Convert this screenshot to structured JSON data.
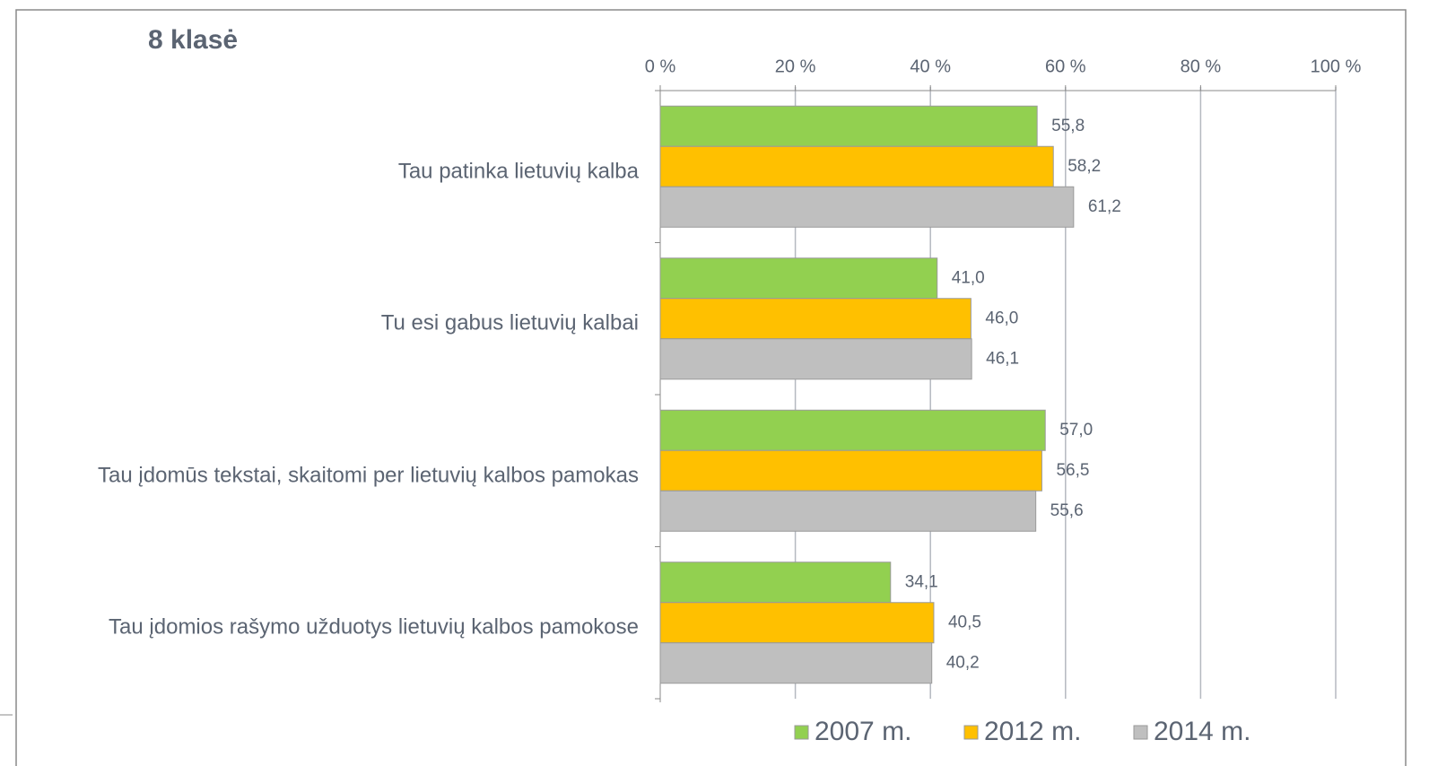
{
  "chart_data": {
    "type": "bar",
    "orientation": "horizontal",
    "title": "8 klasė",
    "categories": [
      "Tau patinka lietuvių kalba",
      "Tu esi gabus lietuvių kalbai",
      "Tau įdomūs tekstai, skaitomi per lietuvių kalbos pamokas",
      "Tau įdomios rašymo užduotys lietuvių kalbos pamokose"
    ],
    "series": [
      {
        "name": "2007 m.",
        "color": "#92d050",
        "values": [
          55.8,
          41.0,
          57.0,
          34.1
        ],
        "value_labels": [
          "55,8",
          "41,0",
          "57,0",
          "34,1"
        ]
      },
      {
        "name": "2012 m.",
        "color": "#ffc000",
        "values": [
          58.2,
          46.0,
          56.5,
          40.5
        ],
        "value_labels": [
          "58,2",
          "46,0",
          "56,5",
          "40,5"
        ]
      },
      {
        "name": "2014 m.",
        "color": "#bfbfbf",
        "values": [
          61.2,
          46.1,
          55.6,
          40.2
        ],
        "value_labels": [
          "61,2",
          "46,1",
          "55,6",
          "40,2"
        ]
      }
    ],
    "xlim": [
      0,
      100
    ],
    "xticks": [
      {
        "value": 0,
        "label": "0 %"
      },
      {
        "value": 20,
        "label": "20 %"
      },
      {
        "value": 40,
        "label": "40 %"
      },
      {
        "value": 60,
        "label": "60 %"
      },
      {
        "value": 80,
        "label": "80 %"
      },
      {
        "value": 100,
        "label": "100 %"
      }
    ],
    "grid": true,
    "legend": "bottom"
  }
}
